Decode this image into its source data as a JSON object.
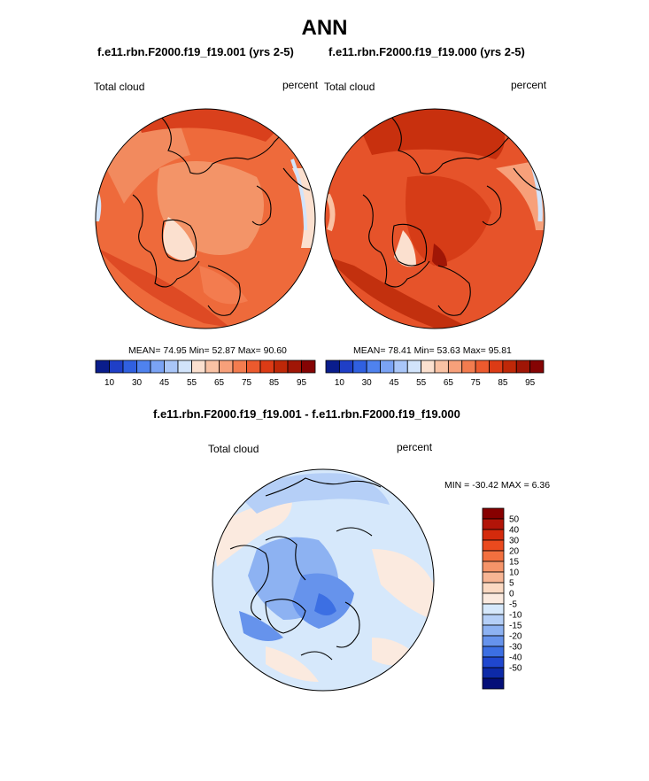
{
  "title": "ANN",
  "panels": [
    {
      "case_title": "f.e11.rbn.F2000.f19_f19.001 (yrs 2-5)",
      "left_label": "Total cloud",
      "right_label": "percent",
      "stats": "MEAN=  74.95  Min=  52.87  Max=  90.60"
    },
    {
      "case_title": "f.e11.rbn.F2000.f19_f19.000 (yrs 2-5)",
      "left_label": "Total cloud",
      "right_label": "percent",
      "stats": "MEAN=  78.41  Min=  53.63  Max=  95.81"
    },
    {
      "case_title": "f.e11.rbn.F2000.f19_f19.001 - f.e11.rbn.F2000.f19_f19.000",
      "left_label": "Total cloud",
      "right_label": "percent",
      "stats": "MIN = -30.42 MAX =   6.36"
    }
  ],
  "chart_data": [
    {
      "type": "heatmap",
      "projection": "north-polar-stereographic",
      "title": "f.e11.rbn.F2000.f19_f19.001 (yrs 2-5)",
      "variable": "Total cloud",
      "units": "percent",
      "mean": 74.95,
      "min": 52.87,
      "max": 90.6,
      "colorbar": {
        "orientation": "horizontal",
        "tick_labels": [
          "10",
          "30",
          "45",
          "55",
          "65",
          "75",
          "85",
          "95"
        ],
        "levels": [
          10,
          20,
          30,
          40,
          45,
          50,
          55,
          60,
          65,
          70,
          75,
          80,
          85,
          90,
          95
        ],
        "colors": [
          "#0a1d8c",
          "#1f3fc7",
          "#3060e0",
          "#4f82ee",
          "#7aa3f4",
          "#a9c6f8",
          "#d2e4fb",
          "#fbe0cf",
          "#f9c2a4",
          "#f7a07a",
          "#f37c4f",
          "#ec5a2e",
          "#dc3b15",
          "#bf2808",
          "#a01606",
          "#850404"
        ]
      }
    },
    {
      "type": "heatmap",
      "projection": "north-polar-stereographic",
      "title": "f.e11.rbn.F2000.f19_f19.000 (yrs 2-5)",
      "variable": "Total cloud",
      "units": "percent",
      "mean": 78.41,
      "min": 53.63,
      "max": 95.81,
      "colorbar": {
        "orientation": "horizontal",
        "tick_labels": [
          "10",
          "30",
          "45",
          "55",
          "65",
          "75",
          "85",
          "95"
        ],
        "levels": [
          10,
          20,
          30,
          40,
          45,
          50,
          55,
          60,
          65,
          70,
          75,
          80,
          85,
          90,
          95
        ],
        "colors": [
          "#0a1d8c",
          "#1f3fc7",
          "#3060e0",
          "#4f82ee",
          "#7aa3f4",
          "#a9c6f8",
          "#d2e4fb",
          "#fbe0cf",
          "#f9c2a4",
          "#f7a07a",
          "#f37c4f",
          "#ec5a2e",
          "#dc3b15",
          "#bf2808",
          "#a01606",
          "#850404"
        ]
      }
    },
    {
      "type": "heatmap",
      "projection": "north-polar-stereographic",
      "title": "f.e11.rbn.F2000.f19_f19.001 - f.e11.rbn.F2000.f19_f19.000",
      "variable": "Total cloud",
      "units": "percent",
      "min": -30.42,
      "max": 6.36,
      "colorbar": {
        "orientation": "vertical",
        "tick_labels": [
          "50",
          "40",
          "30",
          "20",
          "15",
          "10",
          "5",
          "0",
          "-5",
          "-10",
          "-15",
          "-20",
          "-30",
          "-40",
          "-50"
        ],
        "levels": [
          50,
          40,
          30,
          20,
          15,
          10,
          5,
          0,
          -5,
          -10,
          -15,
          -20,
          -30,
          -40,
          -50
        ],
        "colors": [
          "#870000",
          "#b21408",
          "#d42a0c",
          "#ea4a1e",
          "#f2703f",
          "#f59469",
          "#f7b594",
          "#fbd9c2",
          "#fbeadf",
          "#d6e8fb",
          "#b5cff7",
          "#8db2f2",
          "#6693ec",
          "#3c6fe3",
          "#1f47cf",
          "#0d2aa8",
          "#040f78"
        ]
      }
    }
  ]
}
